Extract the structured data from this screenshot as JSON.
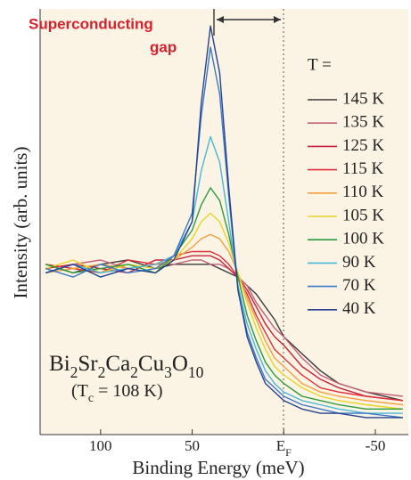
{
  "chart_data": {
    "type": "line",
    "x_label": "Binding Energy (meV)",
    "y_label": "Intensity (arb. units)",
    "annotations": [
      "Superconducting",
      "gap"
    ],
    "legend_title": "T =",
    "compound": "Bi2Sr2Ca2Cu3O10",
    "tc_label": "(Tc = 108 K)",
    "xlim": [
      133,
      -68
    ],
    "ylim": [
      0,
      100
    ],
    "xticks": [
      100,
      50,
      {
        "value": 0,
        "label": "EF"
      },
      -50
    ],
    "x": [
      130,
      115,
      100,
      85,
      70,
      60,
      50,
      45,
      40,
      35,
      30,
      25,
      20,
      15,
      10,
      5,
      0,
      -10,
      -20,
      -30,
      -45,
      -65
    ],
    "series": [
      {
        "name": "145 K",
        "color": "#3a3a3a",
        "values": [
          40,
          38,
          40,
          41,
          39,
          40,
          40,
          40,
          40,
          39,
          38,
          37,
          35,
          33,
          30,
          27,
          23,
          19,
          15,
          12,
          10,
          8
        ]
      },
      {
        "name": "135 K",
        "color": "#c2607a",
        "values": [
          38,
          40,
          41,
          39,
          40,
          40,
          41,
          41,
          40,
          40,
          39,
          37,
          35,
          31,
          28,
          25,
          23,
          18,
          14,
          12,
          10,
          9
        ]
      },
      {
        "name": "125 K",
        "color": "#c8203c",
        "values": [
          39,
          40,
          39,
          38,
          41,
          41,
          42,
          42,
          42,
          41,
          39,
          37,
          34,
          30,
          26,
          23,
          21,
          16,
          13,
          11,
          9,
          8
        ]
      },
      {
        "name": "115 K",
        "color": "#e0303a",
        "values": [
          40,
          39,
          38,
          41,
          40,
          42,
          43,
          43,
          43,
          42,
          40,
          37,
          33,
          28,
          24,
          20,
          18,
          14,
          11,
          10,
          9,
          8
        ]
      },
      {
        "name": "110 K",
        "color": "#f0a040",
        "values": [
          38,
          39,
          40,
          39,
          40,
          41,
          44,
          46,
          47,
          46,
          43,
          38,
          32,
          27,
          22,
          18,
          16,
          12,
          10,
          9,
          8,
          7
        ]
      },
      {
        "name": "105 K",
        "color": "#e8d428",
        "values": [
          39,
          41,
          38,
          40,
          39,
          41,
          46,
          50,
          52,
          50,
          45,
          38,
          31,
          25,
          20,
          16,
          14,
          11,
          9,
          8,
          7,
          6
        ]
      },
      {
        "name": "100 K",
        "color": "#2e9a3e",
        "values": [
          40,
          38,
          39,
          40,
          38,
          42,
          48,
          54,
          58,
          55,
          47,
          37,
          28,
          22,
          17,
          14,
          12,
          9,
          8,
          7,
          6,
          6
        ]
      },
      {
        "name": "90 K",
        "color": "#48b8d8",
        "values": [
          38,
          40,
          38,
          39,
          40,
          42,
          50,
          62,
          70,
          64,
          50,
          35,
          26,
          20,
          15,
          12,
          10,
          8,
          7,
          6,
          5,
          5
        ]
      },
      {
        "name": "70 K",
        "color": "#3a78c8",
        "values": [
          39,
          37,
          40,
          38,
          39,
          42,
          52,
          75,
          91,
          80,
          56,
          34,
          24,
          18,
          13,
          11,
          9,
          7,
          6,
          5,
          5,
          4
        ]
      },
      {
        "name": "40 K",
        "color": "#24428e",
        "values": [
          38,
          40,
          37,
          39,
          38,
          41,
          50,
          78,
          96,
          85,
          58,
          34,
          23,
          17,
          12,
          10,
          8,
          6,
          5,
          5,
          4,
          4
        ]
      }
    ]
  }
}
